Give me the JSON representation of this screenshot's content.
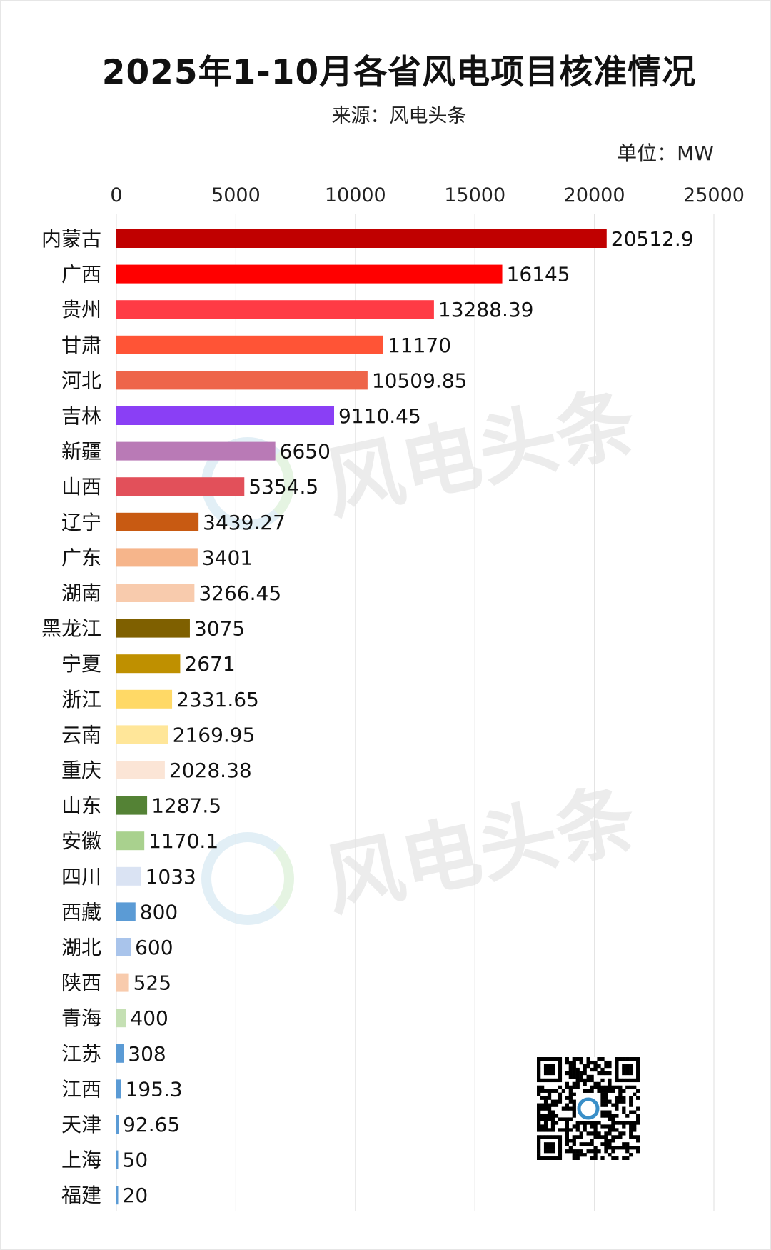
{
  "title": "2025年1-10月各省风电项目核准情况",
  "subtitle": "来源：风电头条",
  "unit": "单位：MW",
  "watermark": "风电头条",
  "chart_data": {
    "type": "bar",
    "orientation": "horizontal",
    "title": "2025年1-10月各省风电项目核准情况",
    "subtitle": "来源：风电头条",
    "unit": "单位：MW",
    "xlim": [
      0,
      25000
    ],
    "x_ticks": [
      0,
      5000,
      10000,
      15000,
      20000,
      25000
    ],
    "x_tick_labels": [
      "0",
      "5000",
      "10000",
      "15000",
      "20000",
      "25000"
    ],
    "grid": "vertical",
    "data_labels": true,
    "categories": [
      "内蒙古",
      "广西",
      "贵州",
      "甘肃",
      "河北",
      "吉林",
      "新疆",
      "山西",
      "辽宁",
      "广东",
      "湖南",
      "黑龙江",
      "宁夏",
      "浙江",
      "云南",
      "重庆",
      "山东",
      "安徽",
      "四川",
      "西藏",
      "湖北",
      "陕西",
      "青海",
      "江苏",
      "江西",
      "天津",
      "上海",
      "福建"
    ],
    "values": [
      20512.9,
      16145,
      13288.39,
      11170,
      10509.85,
      9110.45,
      6650,
      5354.5,
      3439.27,
      3401,
      3266.45,
      3075,
      2671,
      2331.65,
      2169.95,
      2028.38,
      1287.5,
      1170.1,
      1033,
      800,
      600,
      525,
      400,
      308,
      195.3,
      92.65,
      50,
      20
    ],
    "value_labels": [
      "20512.9",
      "16145",
      "13288.39",
      "11170",
      "10509.85",
      "9110.45",
      "6650",
      "5354.5",
      "3439.27",
      "3401",
      "3266.45",
      "3075",
      "2671",
      "2331.65",
      "2169.95",
      "2028.38",
      "1287.5",
      "1170.1",
      "1033",
      "800",
      "600",
      "525",
      "400",
      "308",
      "195.3",
      "92.65",
      "50",
      "20"
    ],
    "colors": [
      "#c00000",
      "#ff0000",
      "#ff3b45",
      "#ff5436",
      "#ee654a",
      "#8a3ff5",
      "#b97ab6",
      "#e2505a",
      "#c85a12",
      "#f6b58b",
      "#f8cbad",
      "#7f6000",
      "#bf9000",
      "#ffd966",
      "#ffe699",
      "#fbe5d6",
      "#548235",
      "#a9d18e",
      "#dae3f3",
      "#5b9bd5",
      "#a9c4eb",
      "#f8cbad",
      "#c5e0b4",
      "#5b9bd5",
      "#5b9bd5",
      "#5b9bd5",
      "#5b9bd5",
      "#5b9bd5"
    ]
  }
}
